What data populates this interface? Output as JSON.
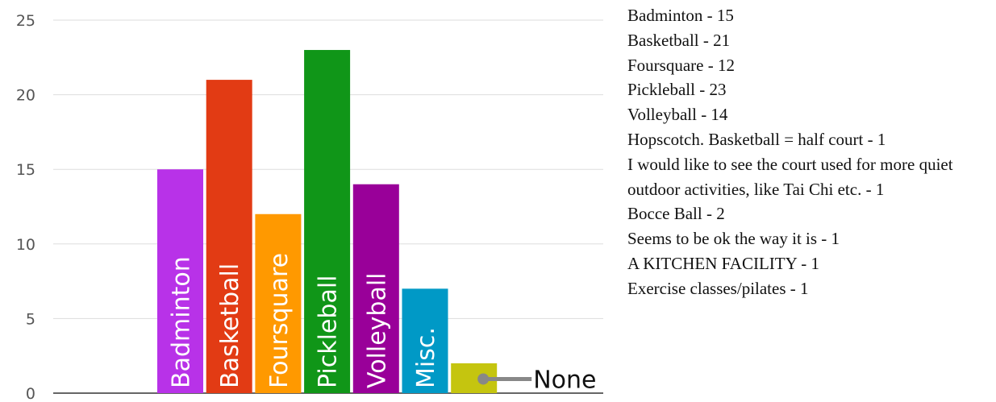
{
  "chart_data": {
    "type": "bar",
    "categories": [
      "Badminton",
      "Basketball",
      "Foursquare",
      "Pickleball",
      "Volleyball",
      "Misc.",
      "None"
    ],
    "values": [
      15,
      21,
      12,
      23,
      14,
      7,
      2
    ],
    "colors": [
      "#b832e8",
      "#e23b14",
      "#ff9900",
      "#109618",
      "#990099",
      "#0099c6",
      "#c5c50f"
    ],
    "ylim": [
      0,
      25
    ],
    "yticks": [
      "0",
      "5",
      "10",
      "15",
      "20",
      "25"
    ],
    "grid": true,
    "label_style": "category names written vertically inside bars; last category labeled by a callout to the right",
    "callout_color": "#888888",
    "axis_color": "#333333",
    "grid_color": "#dddddd"
  },
  "responses": [
    "Badminton - 15",
    "Basketball - 21",
    "Foursquare - 12",
    "Pickleball - 23",
    "Volleyball - 14",
    "Hopscotch. Basketball = half court - 1",
    "I would like to see the court used for more quiet outdoor activities, like Tai Chi etc. - 1",
    "Bocce Ball - 2",
    "Seems to be ok the way it is - 1",
    "A KITCHEN FACILITY - 1",
    "Exercise classes/pilates - 1"
  ]
}
